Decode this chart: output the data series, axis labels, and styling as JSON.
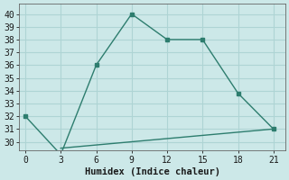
{
  "line1_x": [
    0,
    3,
    6,
    9,
    12,
    15,
    18,
    21
  ],
  "line1_y": [
    32,
    29,
    36,
    40,
    38,
    38,
    33.8,
    31
  ],
  "line2_x": [
    3,
    21
  ],
  "line2_y": [
    29.5,
    31.0
  ],
  "line_color": "#2d7d6e",
  "bg_color": "#cce8e8",
  "grid_color": "#aed4d4",
  "xlabel": "Humidex (Indice chaleur)",
  "xlim": [
    -0.5,
    22
  ],
  "ylim": [
    29.3,
    40.8
  ],
  "xticks": [
    0,
    3,
    6,
    9,
    12,
    15,
    18,
    21
  ],
  "yticks": [
    30,
    31,
    32,
    33,
    34,
    35,
    36,
    37,
    38,
    39,
    40
  ],
  "xlabel_fontsize": 7.5,
  "tick_fontsize": 7
}
